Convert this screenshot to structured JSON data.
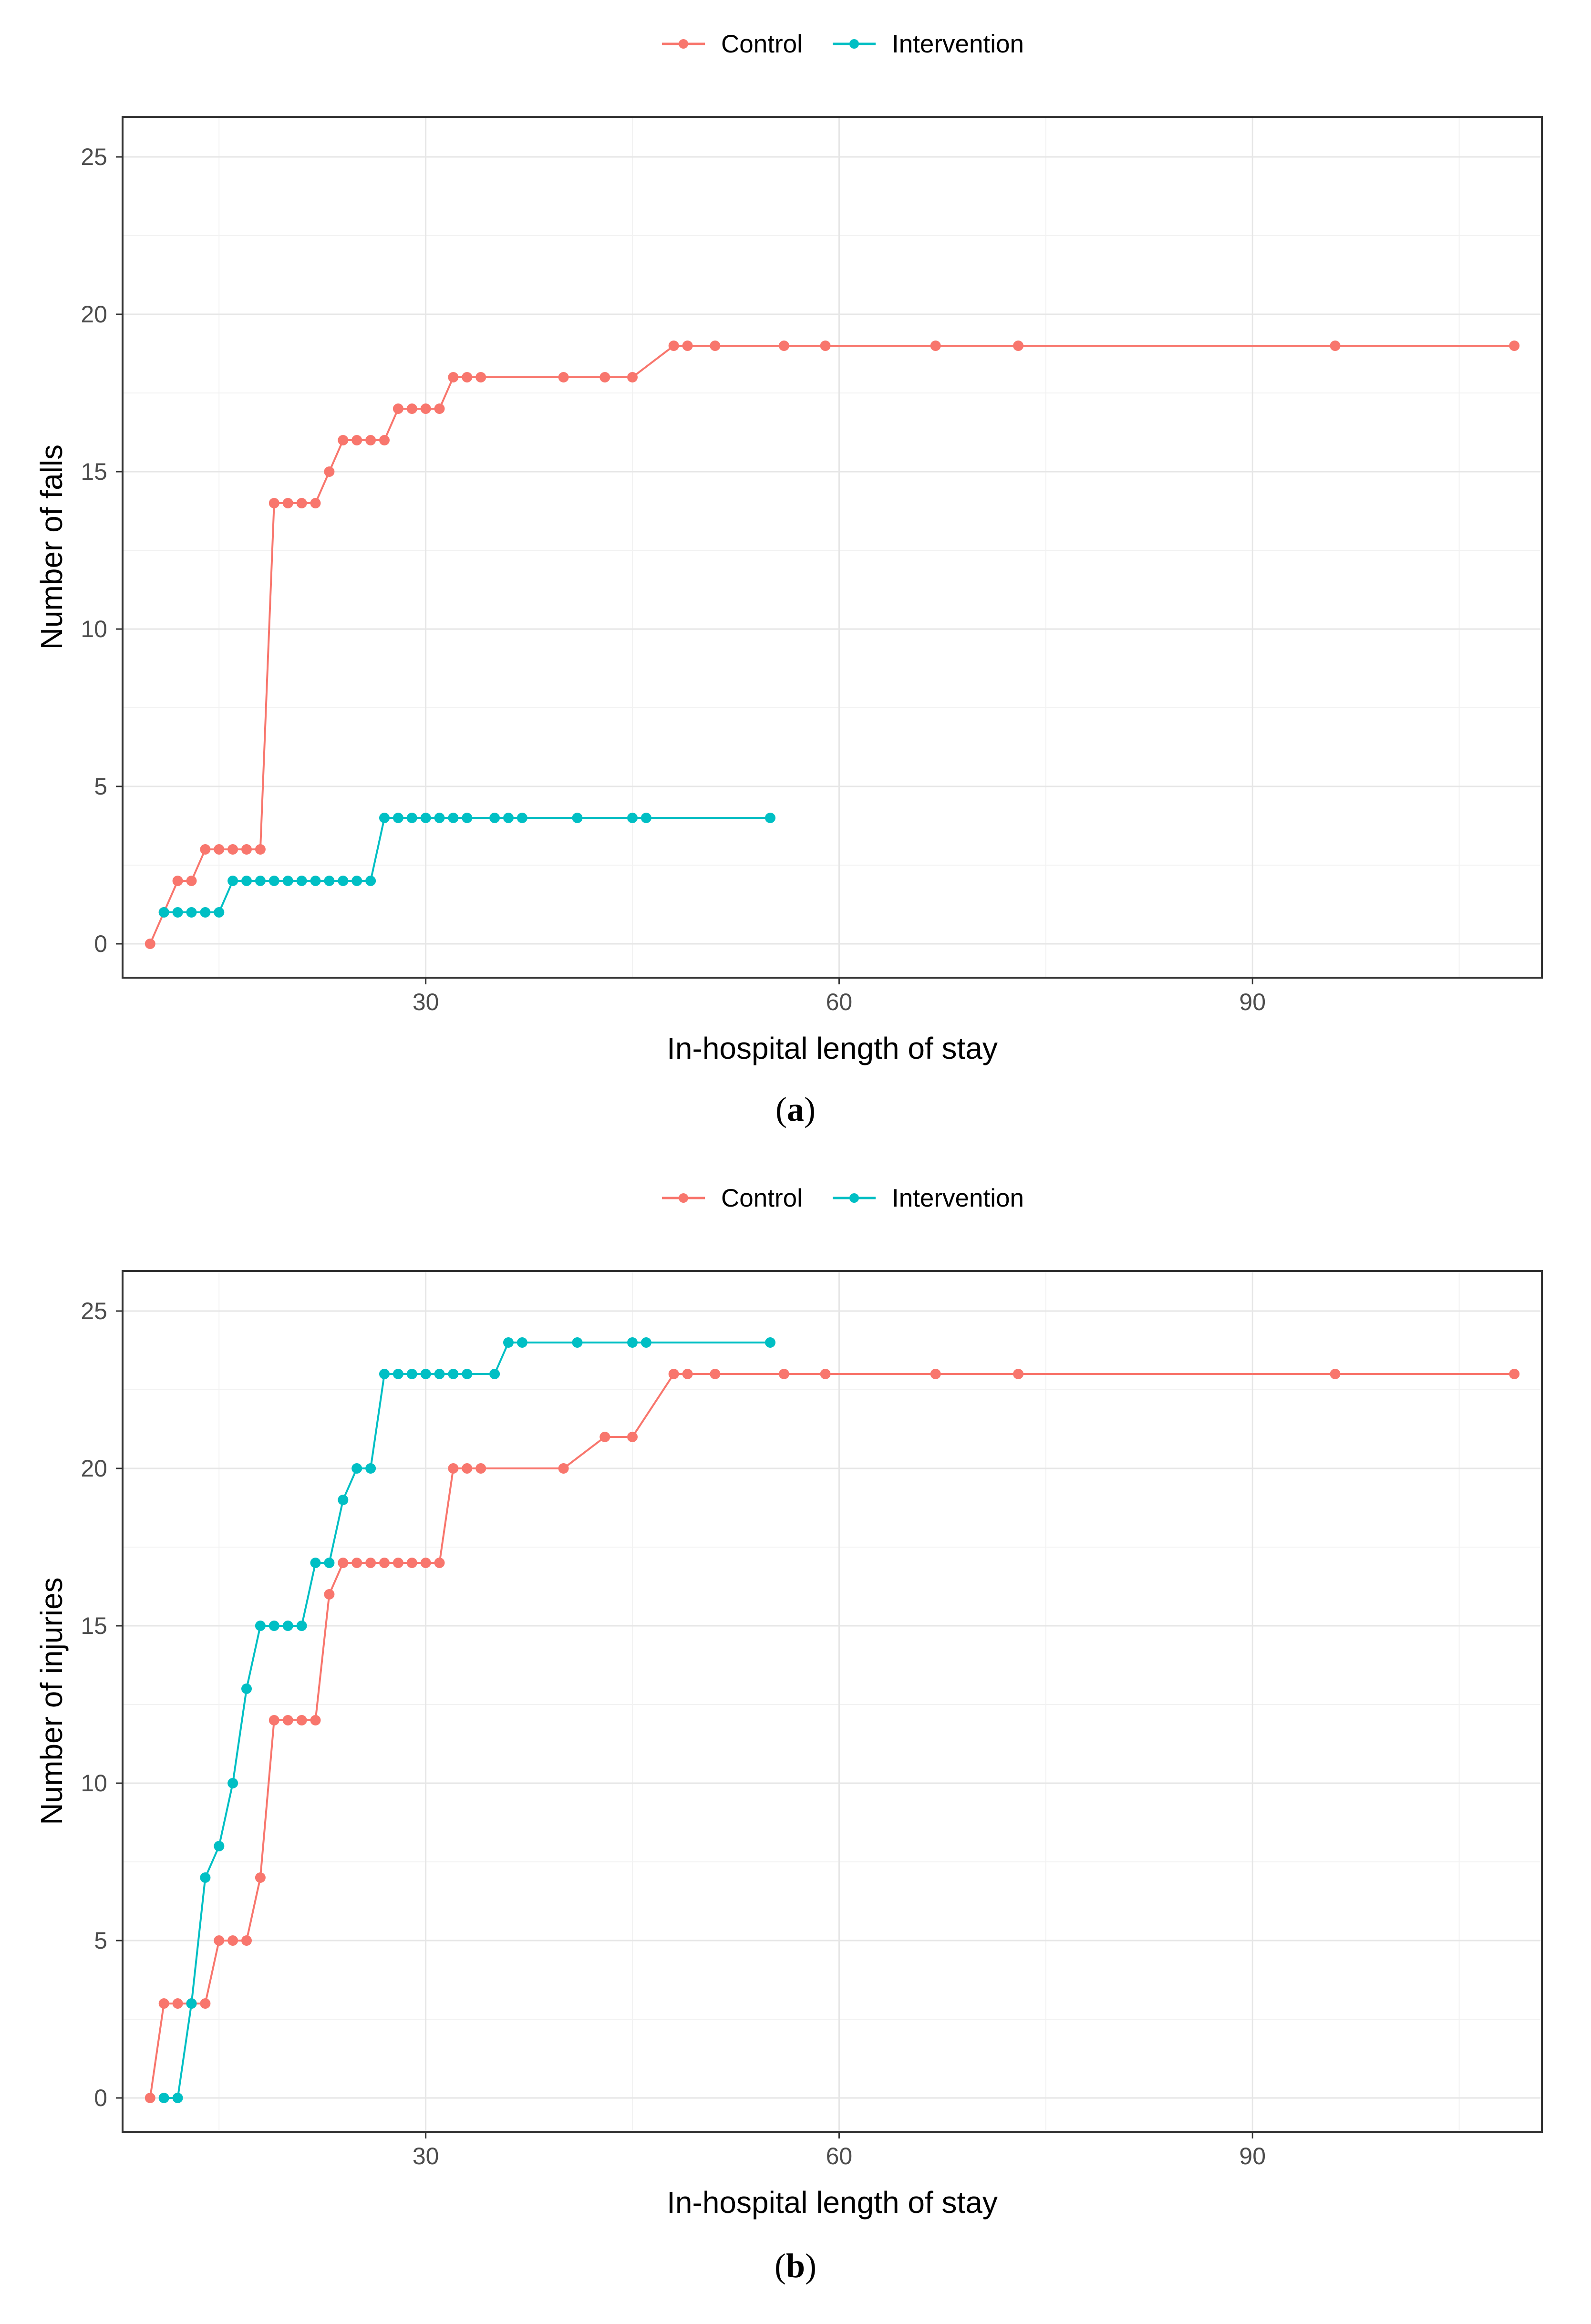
{
  "colors": {
    "control": "#F8766D",
    "intervention": "#00BFC4"
  },
  "chart_data": [
    {
      "type": "line",
      "caption_open": "(",
      "caption_letter": "a",
      "caption_close": ")",
      "legend": [
        "Control",
        "Intervention"
      ],
      "legend_position": "top",
      "xlabel": "In-hospital length of stay",
      "ylabel": "Number of falls",
      "xlim": [
        8,
        111
      ],
      "ylim": [
        0,
        25
      ],
      "x_ticks": [
        30,
        60,
        90
      ],
      "y_ticks": [
        0,
        5,
        10,
        15,
        20,
        25
      ],
      "grid": true,
      "series": [
        {
          "name": "Control",
          "x": [
            10,
            11,
            12,
            13,
            14,
            15,
            16,
            17,
            18,
            19,
            20,
            21,
            22,
            23,
            24,
            25,
            26,
            27,
            28,
            29,
            30,
            31,
            32,
            33,
            34,
            40,
            43,
            45,
            48,
            49,
            51,
            56,
            59,
            67,
            73,
            96,
            109
          ],
          "y": [
            0,
            1,
            2,
            2,
            3,
            3,
            3,
            3,
            3,
            14,
            14,
            14,
            14,
            15,
            16,
            16,
            16,
            16,
            17,
            17,
            17,
            17,
            18,
            18,
            18,
            18,
            18,
            18,
            19,
            19,
            19,
            19,
            19,
            19,
            19,
            19,
            19
          ]
        },
        {
          "name": "Intervention",
          "x": [
            11,
            12,
            13,
            14,
            15,
            16,
            17,
            18,
            19,
            20,
            21,
            22,
            23,
            24,
            25,
            26,
            27,
            28,
            29,
            30,
            31,
            32,
            33,
            35,
            36,
            37,
            41,
            45,
            46,
            55
          ],
          "y": [
            1,
            1,
            1,
            1,
            1,
            2,
            2,
            2,
            2,
            2,
            2,
            2,
            2,
            2,
            2,
            2,
            4,
            4,
            4,
            4,
            4,
            4,
            4,
            4,
            4,
            4,
            4,
            4,
            4,
            4
          ]
        }
      ]
    },
    {
      "type": "line",
      "caption_open": "(",
      "caption_letter": "b",
      "caption_close": ")",
      "legend": [
        "Control",
        "Intervention"
      ],
      "legend_position": "top",
      "xlabel": "In-hospital length of stay",
      "ylabel": "Number of injuries",
      "xlim": [
        8,
        111
      ],
      "ylim": [
        0,
        25
      ],
      "x_ticks": [
        30,
        60,
        90
      ],
      "y_ticks": [
        0,
        5,
        10,
        15,
        20,
        25
      ],
      "grid": true,
      "series": [
        {
          "name": "Control",
          "x": [
            10,
            11,
            12,
            13,
            14,
            15,
            16,
            17,
            18,
            19,
            20,
            21,
            22,
            23,
            24,
            25,
            26,
            27,
            28,
            29,
            30,
            31,
            32,
            33,
            34,
            40,
            43,
            45,
            48,
            49,
            51,
            56,
            59,
            67,
            73,
            96,
            109
          ],
          "y": [
            0,
            3,
            3,
            3,
            3,
            5,
            5,
            5,
            7,
            12,
            12,
            12,
            12,
            16,
            17,
            17,
            17,
            17,
            17,
            17,
            17,
            17,
            20,
            20,
            20,
            20,
            21,
            21,
            23,
            23,
            23,
            23,
            23,
            23,
            23,
            23,
            23
          ]
        },
        {
          "name": "Intervention",
          "x": [
            11,
            12,
            13,
            14,
            15,
            16,
            17,
            18,
            19,
            20,
            21,
            22,
            23,
            24,
            25,
            26,
            27,
            28,
            29,
            30,
            31,
            32,
            33,
            35,
            36,
            37,
            41,
            45,
            46,
            55
          ],
          "y": [
            0,
            0,
            3,
            7,
            8,
            10,
            13,
            15,
            15,
            15,
            15,
            17,
            17,
            19,
            20,
            20,
            23,
            23,
            23,
            23,
            23,
            23,
            23,
            23,
            24,
            24,
            24,
            24,
            24,
            24
          ]
        }
      ]
    }
  ]
}
